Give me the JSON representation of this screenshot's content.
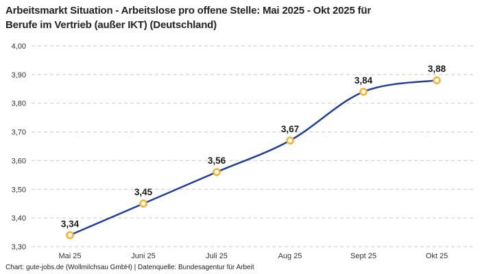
{
  "title_lines": [
    "Arbeitsmarkt Situation - Arbeitslose pro offene Stelle: Mai 2025 - Okt 2025 für",
    "Berufe im Vertrieb (außer IKT) (Deutschland)"
  ],
  "footer": "Chart: gute-jobs.de (Wollmilchsau GmbH) | Datenquelle: Bundesagentur für Arbeit",
  "chart_data": {
    "type": "line",
    "title": "Arbeitsmarkt Situation - Arbeitslose pro offene Stelle: Mai 2025 - Okt 2025 für Berufe im Vertrieb (außer IKT) (Deutschland)",
    "categories": [
      "Mai 25",
      "Juni 25",
      "Juli 25",
      "Aug 25",
      "Sept 25",
      "Okt 25"
    ],
    "series": [
      {
        "name": "Arbeitslose pro offene Stelle",
        "values": [
          3.34,
          3.45,
          3.56,
          3.67,
          3.84,
          3.88
        ]
      }
    ],
    "data_labels": [
      "3,34",
      "3,45",
      "3,56",
      "3,67",
      "3,84",
      "3,88"
    ],
    "ytick_labels": [
      "3,30",
      "3,40",
      "3,50",
      "3,60",
      "3,70",
      "3,80",
      "3,90",
      "4,00"
    ],
    "xlabel": "",
    "ylabel": "",
    "ylim": [
      3.3,
      4.0
    ],
    "ytick_step": 0.1,
    "decimal_separator": ",",
    "grid": "horizontal-dashed",
    "legend": "none",
    "colors": {
      "line": "#1f3d99",
      "marker_fill": "#ffffff",
      "marker_stroke": "#f5b32e",
      "grid": "#c9c9c9",
      "data_label": "#1a1a1a",
      "axis_text": "#333333",
      "title": "#222222"
    }
  }
}
